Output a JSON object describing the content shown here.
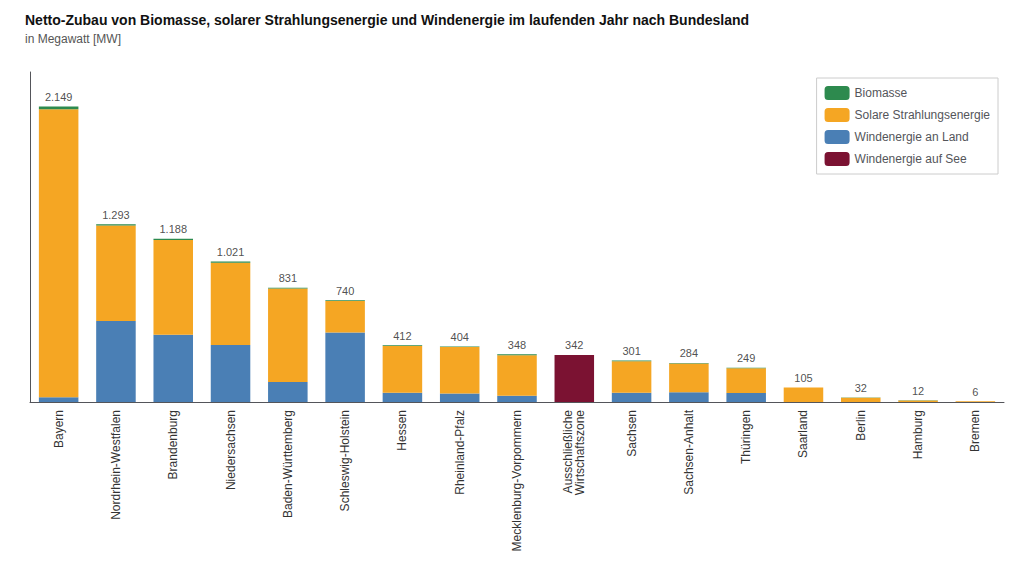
{
  "chart_data": {
    "type": "bar",
    "title": "Netto-Zubau von Biomasse, solarer Strahlungsenergie und Windenergie im laufenden Jahr nach Bundesland",
    "subtitle": "in Megawatt [MW]",
    "categories": [
      "Bayern",
      "Nordrhein-Westfalen",
      "Brandenburg",
      "Niedersachsen",
      "Baden-Württemberg",
      "Schleswig-Holstein",
      "Hessen",
      "Rheinland-Pfalz",
      "Mecklenburg-Vorpommern",
      "Ausschließliche\nWirtschaftszone",
      "Sachsen",
      "Sachsen-Anhalt",
      "Thüringen",
      "Saarland",
      "Berlin",
      "Hamburg",
      "Bremen"
    ],
    "series": [
      {
        "name": "Windenergie auf See",
        "color": "#7b1232",
        "values": [
          0,
          0,
          0,
          0,
          0,
          0,
          0,
          0,
          0,
          342,
          0,
          0,
          0,
          0,
          0,
          0,
          0
        ]
      },
      {
        "name": "Windenergie an Land",
        "color": "#4a7fb5",
        "values": [
          35,
          590,
          490,
          415,
          146,
          505,
          67,
          61,
          45,
          0,
          67,
          71,
          66,
          0,
          0,
          0,
          0
        ]
      },
      {
        "name": "Solare Strahlungsenergie",
        "color": "#f5a623",
        "values": [
          2094,
          693,
          688,
          598,
          679,
          230,
          340,
          339,
          295,
          0,
          230,
          209,
          179,
          105,
          31,
          11,
          5
        ]
      },
      {
        "name": "Biomasse",
        "color": "#2d8a4e",
        "values": [
          20,
          10,
          10,
          8,
          6,
          5,
          5,
          4,
          8,
          0,
          4,
          4,
          4,
          0,
          1,
          1,
          1
        ]
      }
    ],
    "stacked": true,
    "totals": [
      2149,
      1293,
      1188,
      1021,
      831,
      740,
      412,
      404,
      348,
      342,
      301,
      284,
      249,
      105,
      32,
      12,
      6
    ],
    "total_labels": [
      "2.149",
      "1.293",
      "1.188",
      "1.021",
      "831",
      "740",
      "412",
      "404",
      "348",
      "342",
      "301",
      "284",
      "249",
      "105",
      "32",
      "12",
      "6"
    ],
    "ylim": [
      0,
      2400
    ],
    "grid": false,
    "legend": "upper right",
    "tick_labels": "x"
  }
}
